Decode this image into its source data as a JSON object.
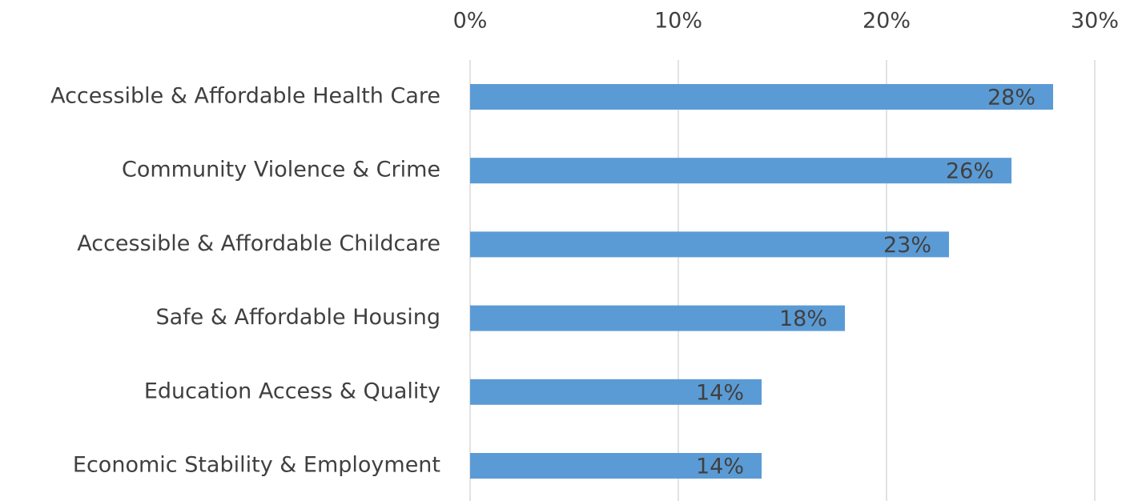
{
  "chart_data": {
    "type": "hbar",
    "categories": [
      "Accessible & Affordable Health Care",
      "Community Violence & Crime",
      "Accessible & Affordable Childcare",
      "Safe & Affordable Housing",
      "Education Access & Quality",
      "Economic Stability & Employment"
    ],
    "values": [
      28,
      26,
      23,
      18,
      14,
      14
    ],
    "value_labels": [
      "28%",
      "26%",
      "23%",
      "18%",
      "14%",
      "14%"
    ],
    "color": "#5b9bd5",
    "xlim": [
      0,
      30
    ],
    "xticks": [
      {
        "value": 0,
        "label": "0%"
      },
      {
        "value": 10,
        "label": "10%"
      },
      {
        "value": 20,
        "label": "20%"
      },
      {
        "value": 30,
        "label": "30%"
      }
    ],
    "grid": true
  }
}
